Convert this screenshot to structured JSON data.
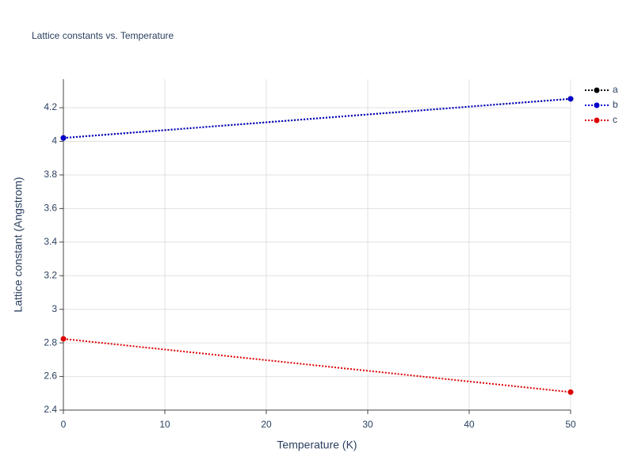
{
  "chart_data": {
    "type": "line",
    "title": "Lattice constants vs. Temperature",
    "x_label": "Temperature (K)",
    "y_label": "Lattice constant (Angstrom)",
    "x": [
      0,
      50
    ],
    "series": [
      {
        "name": "a",
        "color": "#000000",
        "values": [
          4.02,
          4.253
        ]
      },
      {
        "name": "b",
        "color": "#0000cc",
        "values": [
          4.02,
          4.253
        ]
      },
      {
        "name": "c",
        "color": "#dd0000",
        "values": [
          2.824,
          2.507
        ]
      }
    ],
    "xlim": [
      0,
      50
    ],
    "xticks": [
      0,
      10,
      20,
      30,
      40,
      50
    ],
    "ylim": [
      2.4,
      4.37
    ],
    "yticks": [
      2.4,
      2.6,
      2.8,
      3,
      3.2,
      3.4,
      3.6,
      3.8,
      4,
      4.2
    ],
    "grid": true,
    "legend": "right"
  }
}
